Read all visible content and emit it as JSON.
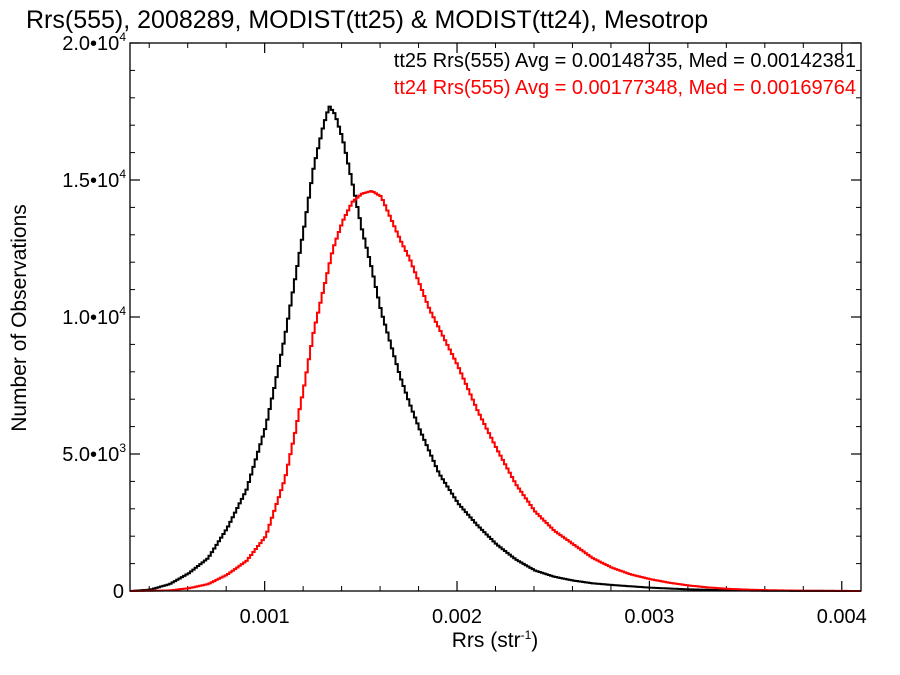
{
  "chart_data": {
    "type": "line",
    "title": "Rrs(555), 2008289, MODIST(tt25) & MODIST(tt24), Mesotrop",
    "xlabel": "Rrs (str",
    "xlabel_sup": "-1",
    "xlabel_tail": ")",
    "ylabel": "Number of Observations",
    "xlim": [
      0.0003,
      0.0041
    ],
    "ylim": [
      0,
      20000
    ],
    "x_ticks": [
      {
        "value": 0.001,
        "label": "0.001"
      },
      {
        "value": 0.002,
        "label": "0.002"
      },
      {
        "value": 0.003,
        "label": "0.003"
      },
      {
        "value": 0.004,
        "label": "0.004"
      }
    ],
    "y_ticks": [
      {
        "value": 0,
        "label": "0",
        "exp": ""
      },
      {
        "value": 5000,
        "label": "5.0•10",
        "exp": "3"
      },
      {
        "value": 10000,
        "label": "1.0•10",
        "exp": "4"
      },
      {
        "value": 15000,
        "label": "1.5•10",
        "exp": "4"
      },
      {
        "value": 20000,
        "label": "2.0•10",
        "exp": "4"
      }
    ],
    "series": [
      {
        "name": "tt25 Rrs(555) Avg = 0.00148735, Med = 0.00142381",
        "color": "#000000",
        "x": [
          0.0003,
          0.0004,
          0.0005,
          0.0006,
          0.0007,
          0.0008,
          0.0009,
          0.001,
          0.00105,
          0.0011,
          0.00115,
          0.0012,
          0.00125,
          0.0013,
          0.00133,
          0.00136,
          0.0014,
          0.00145,
          0.0015,
          0.00155,
          0.0016,
          0.00165,
          0.0017,
          0.00175,
          0.0018,
          0.00185,
          0.0019,
          0.002,
          0.0021,
          0.0022,
          0.0023,
          0.0024,
          0.0025,
          0.0026,
          0.0027,
          0.0028,
          0.003,
          0.0032,
          0.0034,
          0.0036,
          0.0038,
          0.0041
        ],
        "y": [
          0,
          50,
          250,
          650,
          1200,
          2300,
          3700,
          6000,
          7600,
          9300,
          11300,
          13300,
          15500,
          17000,
          17700,
          17400,
          16500,
          14900,
          13200,
          11800,
          10200,
          9000,
          7800,
          6800,
          5900,
          5100,
          4300,
          3200,
          2400,
          1700,
          1150,
          750,
          520,
          380,
          280,
          220,
          120,
          60,
          25,
          10,
          5,
          0
        ]
      },
      {
        "name": "tt24 Rrs(555) Avg = 0.00177348, Med = 0.00169764",
        "color": "#ff0000",
        "x": [
          0.0003,
          0.0005,
          0.0006,
          0.0007,
          0.0008,
          0.0009,
          0.001,
          0.0011,
          0.00115,
          0.0012,
          0.00125,
          0.0013,
          0.00135,
          0.0014,
          0.00145,
          0.0015,
          0.00155,
          0.0016,
          0.00165,
          0.0017,
          0.00175,
          0.0018,
          0.00185,
          0.0019,
          0.002,
          0.0021,
          0.0022,
          0.0023,
          0.0024,
          0.0025,
          0.0026,
          0.0027,
          0.0028,
          0.0029,
          0.003,
          0.0031,
          0.0032,
          0.0033,
          0.0034,
          0.0035,
          0.0036,
          0.0038,
          0.0041
        ],
        "y": [
          0,
          20,
          100,
          250,
          600,
          1100,
          2000,
          4100,
          5700,
          7500,
          9500,
          11000,
          12500,
          13500,
          14200,
          14500,
          14600,
          14400,
          13600,
          12800,
          12100,
          11200,
          10300,
          9600,
          8200,
          6600,
          5200,
          3900,
          2900,
          2200,
          1700,
          1200,
          850,
          600,
          430,
          300,
          200,
          130,
          80,
          50,
          30,
          10,
          0
        ]
      }
    ]
  }
}
